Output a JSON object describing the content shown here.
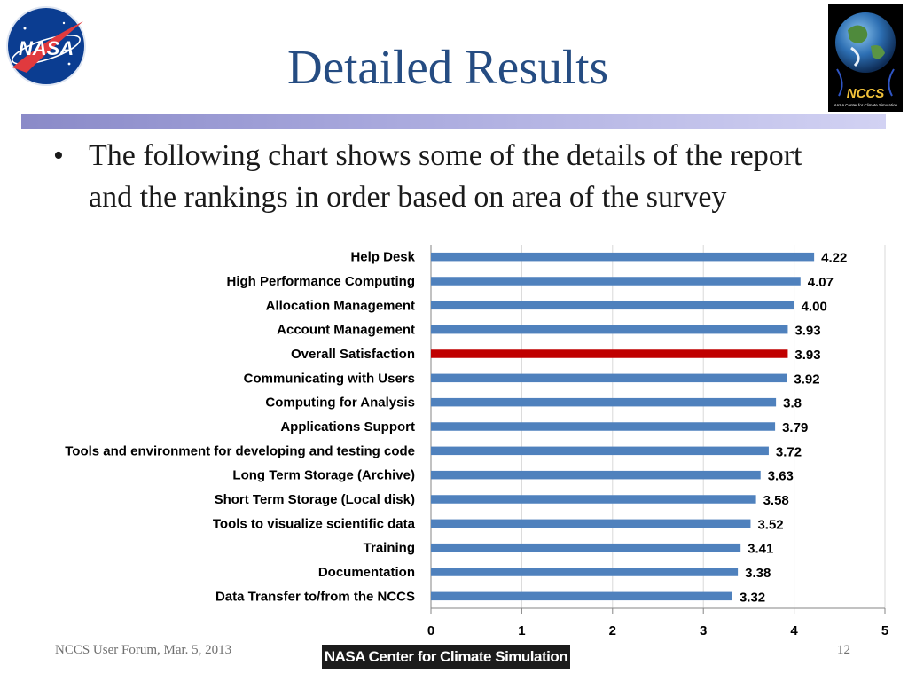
{
  "slide": {
    "title": "Detailed Results",
    "bullet": "The following chart shows some of the details of the report and the rankings in order based on area of the survey"
  },
  "logos": {
    "left": {
      "text": "NASA",
      "icon": "nasa-meatball-icon"
    },
    "right": {
      "text": "NCCS",
      "caption": "NASA Center for Climate Simulation",
      "icon": "nccs-globe-icon"
    }
  },
  "footer": {
    "left": "NCCS User Forum, Mar. 5, 2013",
    "center": "NASA Center for Climate Simulation",
    "page_number": "12"
  },
  "chart_data": {
    "type": "bar",
    "orientation": "horizontal",
    "categories": [
      "Help Desk",
      "High Performance Computing",
      "Allocation Management",
      "Account  Management",
      "Overall Satisfaction",
      "Communicating with Users",
      "Computing for Analysis",
      "Applications Support",
      "Tools and environment for developing and testing code",
      "Long Term Storage (Archive)",
      "Short Term Storage (Local disk)",
      "Tools to visualize scientific data",
      "Training",
      "Documentation",
      "Data Transfer to/from the NCCS"
    ],
    "values": [
      4.22,
      4.07,
      4.0,
      3.93,
      3.93,
      3.92,
      3.8,
      3.79,
      3.72,
      3.63,
      3.58,
      3.52,
      3.41,
      3.38,
      3.32
    ],
    "value_labels": [
      "4.22",
      "4.07",
      "4.00",
      "3.93",
      "3.93",
      "3.92",
      "3.8",
      "3.79",
      "3.72",
      "3.63",
      "3.58",
      "3.52",
      "3.41",
      "3.38",
      "3.32"
    ],
    "highlight_category": "Overall Satisfaction",
    "xlim": [
      0,
      5
    ],
    "xticks": [
      "0",
      "1",
      "2",
      "3",
      "4",
      "5"
    ],
    "grid": true,
    "colors": {
      "bar": "#4f81bd",
      "highlight": "#c00000",
      "grid": "#d9d9d9"
    }
  }
}
